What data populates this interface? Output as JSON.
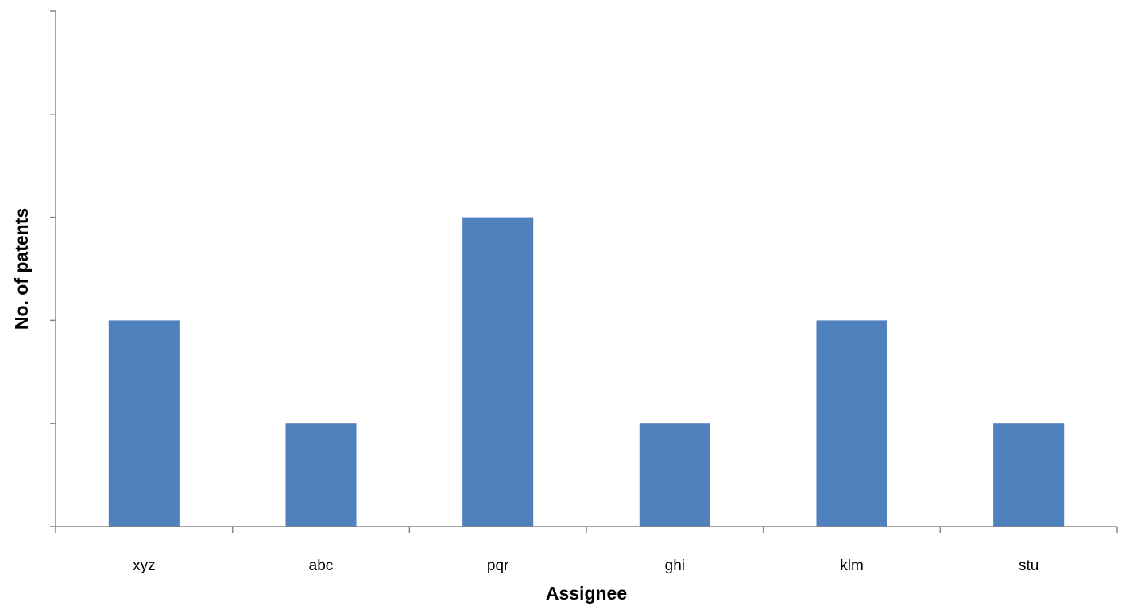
{
  "chart_data": {
    "type": "bar",
    "categories": [
      "xyz",
      "abc",
      "pqr",
      "ghi",
      "klm",
      "stu"
    ],
    "values": [
      2,
      1,
      3,
      1,
      2,
      1
    ],
    "xlabel": "Assignee",
    "ylabel": "No. of patents",
    "ylim": [
      0,
      5
    ],
    "y_ticks": [
      0,
      1,
      2,
      3,
      4,
      5
    ],
    "y_tick_labels_shown": false,
    "grid": false,
    "legend": "none",
    "colors": {
      "bar": "#4F81BD",
      "axis": "#868686"
    }
  }
}
